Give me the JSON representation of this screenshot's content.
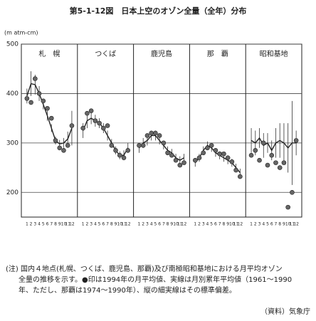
{
  "chart_data": {
    "type": "line",
    "title": "第5-1-12図　日本上空のオゾン全量（全年）分布",
    "y_label": "(m atm-cm)",
    "ylim": [
      150,
      500
    ],
    "yticks": [
      200,
      300,
      400,
      500
    ],
    "grid": true,
    "mean_color": "#222",
    "point_color": "#666",
    "panels": [
      {
        "name": "札　幌",
        "categories": [
          "1",
          "2",
          "3",
          "4",
          "5",
          "6",
          "7",
          "8",
          "9",
          "10",
          "11",
          "12"
        ],
        "mean": [
          395,
          420,
          418,
          400,
          378,
          355,
          330,
          305,
          298,
          300,
          308,
          330
        ],
        "sd": [
          15,
          25,
          20,
          15,
          10,
          10,
          8,
          8,
          8,
          10,
          15,
          35
        ],
        "points": [
          390,
          382,
          430,
          400,
          385,
          370,
          350,
          305,
          290,
          285,
          295,
          335
        ]
      },
      {
        "name": "つくば",
        "categories": [
          "1",
          "2",
          "3",
          "4",
          "5",
          "6",
          "7",
          "8",
          "9",
          "10",
          "11",
          "12"
        ],
        "mean": [
          325,
          345,
          350,
          345,
          340,
          330,
          315,
          300,
          285,
          275,
          275,
          290
        ],
        "sd": [
          15,
          15,
          12,
          12,
          10,
          10,
          10,
          8,
          8,
          8,
          10,
          10
        ],
        "points": [
          330,
          360,
          365,
          345,
          340,
          330,
          335,
          295,
          285,
          275,
          270,
          285
        ]
      },
      {
        "name": "鹿児島",
        "categories": [
          "1",
          "2",
          "3",
          "4",
          "5",
          "6",
          "7",
          "8",
          "9",
          "10",
          "11",
          "12"
        ],
        "mean": [
          290,
          300,
          305,
          315,
          315,
          305,
          295,
          285,
          280,
          270,
          265,
          270
        ],
        "sd": [
          10,
          10,
          10,
          10,
          10,
          8,
          8,
          8,
          8,
          8,
          8,
          8
        ],
        "points": [
          295,
          295,
          315,
          320,
          320,
          315,
          300,
          280,
          275,
          265,
          255,
          260
        ]
      },
      {
        "name": "那　覇",
        "categories": [
          "1",
          "2",
          "3",
          "4",
          "5",
          "6",
          "7",
          "8",
          "9",
          "10",
          "11",
          "12"
        ],
        "mean": [
          260,
          270,
          285,
          295,
          290,
          280,
          275,
          270,
          265,
          260,
          250,
          240
        ],
        "sd": [
          8,
          8,
          8,
          8,
          8,
          8,
          8,
          8,
          8,
          8,
          8,
          8
        ],
        "points": [
          265,
          270,
          280,
          290,
          295,
          285,
          278,
          278,
          270,
          262,
          245,
          232
        ]
      },
      {
        "name": "昭和基地",
        "categories": [
          "1",
          "2",
          "3",
          "4",
          "5",
          "6",
          "7",
          "8",
          "9",
          "10",
          "11",
          "12"
        ],
        "mean": [
          305,
          300,
          310,
          295,
          300,
          285,
          300,
          305,
          300,
          290,
          300,
          300
        ],
        "sd": [
          25,
          25,
          20,
          25,
          20,
          20,
          30,
          35,
          40,
          50,
          85,
          25
        ],
        "points": [
          275,
          285,
          265,
          300,
          255,
          275,
          260,
          250,
          260,
          170,
          200,
          305
        ]
      }
    ]
  },
  "note": [
    "(注) 国内４地点(札幌、つくば、鹿児島、那覇)及び南極昭和基地における月平均オゾン",
    "全量の推移を示す。●印は1994年の月平均値、実線は月別累年平均値（1961～1990",
    "年、ただし、那覇は1974～1990年）、縦の細実線はその標準偏差。"
  ],
  "source": "（資料）気象庁"
}
